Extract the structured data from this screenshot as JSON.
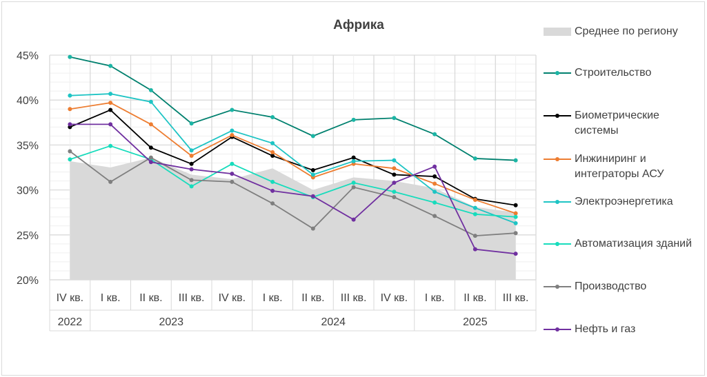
{
  "chart_data": {
    "type": "line",
    "title": "Африка",
    "ylim": [
      20,
      45
    ],
    "yticks": [
      "20%",
      "25%",
      "30%",
      "35%",
      "40%",
      "45%"
    ],
    "grid": true,
    "legend_position": "right",
    "categories": [
      "IV кв.",
      "I кв.",
      "II кв.",
      "III кв.",
      "IV кв.",
      "I кв.",
      "II кв.",
      "III кв.",
      "IV кв.",
      "I кв.",
      "II кв.",
      "III кв."
    ],
    "years": [
      {
        "label": "2022",
        "span": 1
      },
      {
        "label": "2023",
        "span": 4
      },
      {
        "label": "2024",
        "span": 4
      },
      {
        "label": "2025",
        "span": 3
      }
    ],
    "area": {
      "name": "Среднее по региону",
      "color": "#d9d9d9",
      "values": [
        33.2,
        32.5,
        33.6,
        31.7,
        31.2,
        32.4,
        30.0,
        31.4,
        31.0,
        30.2,
        28.1,
        27.5
      ]
    },
    "series": [
      {
        "name": "Строительство",
        "color": "#00806e",
        "marker": "#1bb5a5",
        "values": [
          44.8,
          43.8,
          41.1,
          37.4,
          38.9,
          38.1,
          36.0,
          37.8,
          38.0,
          36.2,
          33.5,
          33.3
        ]
      },
      {
        "name": "Биометрические системы",
        "color": "#000000",
        "marker": "#000000",
        "values": [
          37.0,
          38.9,
          34.7,
          32.9,
          35.9,
          33.8,
          32.2,
          33.6,
          31.7,
          31.5,
          29.0,
          28.3
        ]
      },
      {
        "name": "Инжиниринг и интеграторы АСУ",
        "color": "#ed7d31",
        "marker": "#ed7d31",
        "values": [
          39.0,
          39.7,
          37.3,
          33.8,
          36.1,
          34.2,
          31.4,
          32.9,
          32.4,
          30.7,
          28.9,
          27.4
        ]
      },
      {
        "name": "Электроэнергетика",
        "color": "#1ec4c4",
        "marker": "#1ec4c4",
        "values": [
          40.5,
          40.7,
          39.8,
          34.4,
          36.6,
          35.2,
          31.7,
          33.2,
          33.3,
          29.8,
          28.0,
          26.3
        ]
      },
      {
        "name": "Автоматизация зданий",
        "color": "#17dcbc",
        "marker": "#17dcbc",
        "values": [
          33.4,
          34.9,
          33.4,
          30.4,
          32.9,
          30.9,
          29.2,
          30.8,
          29.8,
          28.6,
          27.3,
          27.0
        ]
      },
      {
        "name": "Производство",
        "color": "#7f7f7f",
        "marker": "#7f7f7f",
        "values": [
          34.3,
          30.9,
          33.6,
          31.1,
          30.9,
          28.5,
          25.7,
          30.3,
          29.2,
          27.1,
          24.9,
          25.2
        ]
      },
      {
        "name": "Нефть и газ",
        "color": "#7030a0",
        "marker": "#7030a0",
        "values": [
          37.3,
          37.3,
          33.1,
          32.3,
          31.8,
          29.9,
          29.3,
          26.7,
          30.8,
          32.6,
          23.4,
          22.9
        ]
      }
    ]
  }
}
